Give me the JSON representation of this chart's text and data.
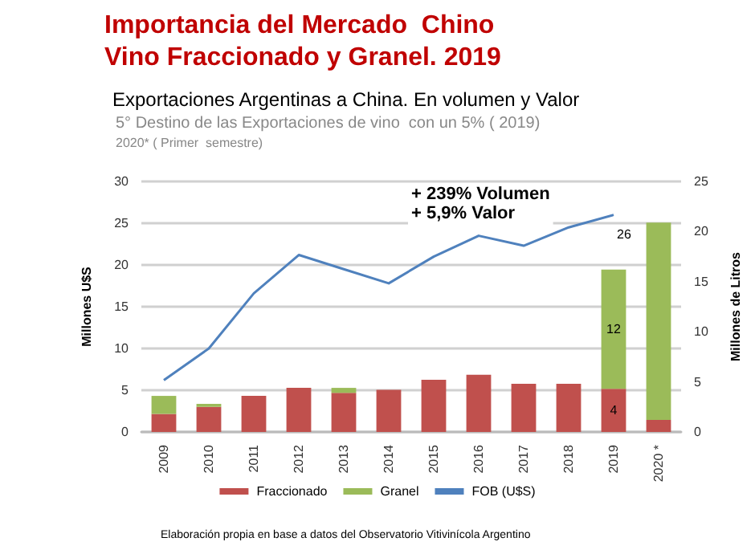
{
  "chart_data": {
    "type": "bar",
    "title": "Importancia del Mercado  Chino\nVino Fraccionado y Granel. 2019",
    "subtitle": "Exportaciones Argentinas a China. En volumen y Valor",
    "annotations": [
      "5° Destino de las Exportaciones de vino  con un 5% ( 2019)",
      "2020* ( Primer  semestre)",
      "+ 239% Volumen\n+ 5,9% Valor",
      "Elaboración propia en base a datos del Observatorio Vitivinícola Argentino"
    ],
    "ylabel": "Millones U$S",
    "y2label": "Millones de Litros",
    "categories": [
      "2009",
      "2010",
      "2011",
      "2012",
      "2013",
      "2014",
      "2015",
      "2016",
      "2017",
      "2018",
      "2019",
      "2020 *"
    ],
    "stacked": true,
    "series": [
      {
        "name": "Fraccionado",
        "color": "#c0504d",
        "axis": "y2",
        "values": [
          1.8,
          2.5,
          3.6,
          4.4,
          3.9,
          4.2,
          5.2,
          5.7,
          4.8,
          4.8,
          4.3,
          1.2
        ],
        "value_labels": [
          null,
          null,
          null,
          null,
          null,
          null,
          null,
          null,
          null,
          null,
          "4",
          null
        ]
      },
      {
        "name": "Granel",
        "color": "#9bbb59",
        "axis": "y2",
        "values": [
          1.8,
          0.3,
          0,
          0,
          0.5,
          0,
          0,
          0,
          0,
          0,
          11.9,
          19.7
        ],
        "value_labels": [
          null,
          null,
          null,
          null,
          null,
          null,
          null,
          null,
          null,
          null,
          "12",
          null
        ]
      },
      {
        "name": "FOB (U$S)",
        "type": "line",
        "color": "#4f81bd",
        "axis": "y",
        "values": [
          6.2,
          10.0,
          16.6,
          21.2,
          19.5,
          17.8,
          21.0,
          23.5,
          22.3,
          24.5,
          26,
          null
        ],
        "value_labels": [
          null,
          null,
          null,
          null,
          null,
          null,
          null,
          null,
          null,
          null,
          "26",
          null
        ]
      }
    ],
    "ylim": [
      0,
      30
    ],
    "yticks": [
      0,
      5,
      10,
      15,
      20,
      25,
      30
    ],
    "y2lim": [
      0,
      25
    ],
    "y2ticks": [
      0,
      5,
      10,
      15,
      20,
      25
    ],
    "grid": "y",
    "legend": "bottom",
    "marker": "none",
    "line_style": "solid"
  }
}
